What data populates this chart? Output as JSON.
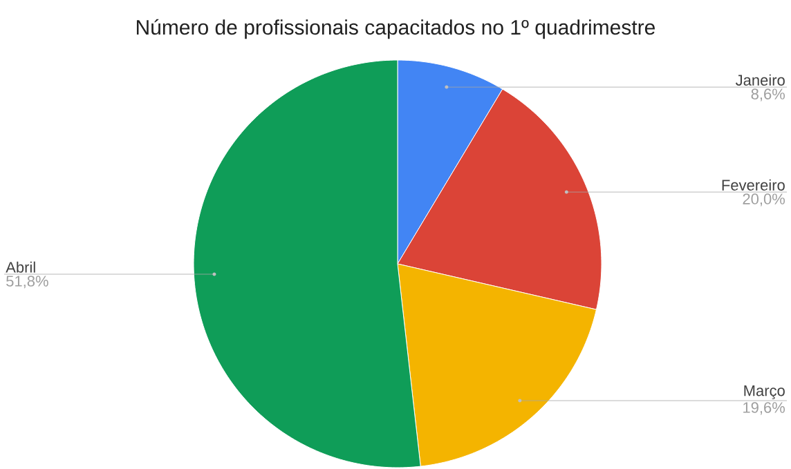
{
  "chart_data": {
    "type": "pie",
    "title": "Número de profissionais capacitados no 1º quadrimestre",
    "categories": [
      "Janeiro",
      "Fevereiro",
      "Março",
      "Abril"
    ],
    "values": [
      8.6,
      20.0,
      19.6,
      51.8
    ],
    "value_labels": [
      "8,6%",
      "20,0%",
      "19,6%",
      "51,8%"
    ],
    "colors": [
      "#4285f4",
      "#db4437",
      "#f4b400",
      "#0f9d58"
    ]
  }
}
